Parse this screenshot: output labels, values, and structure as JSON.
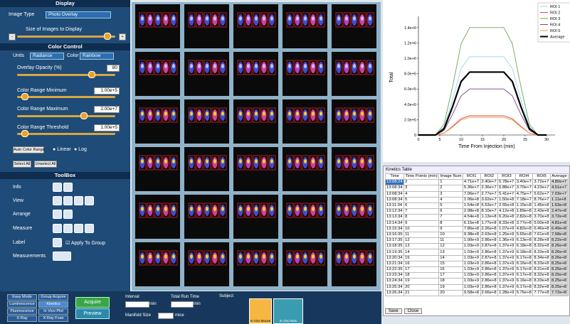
{
  "display": {
    "title": "Display",
    "image_type_label": "Image Type",
    "image_type": "Photo Overlay",
    "size_label": "Size of Images to Display"
  },
  "color_control": {
    "title": "Color Control",
    "units_label": "Units",
    "units": "Radiance",
    "color_label": "Color",
    "color": "Rainbow",
    "opacity_label": "Overlay Opacity (%)",
    "opacity": 80,
    "min_label": "Color Range Minimum",
    "min": "1.00e+5",
    "max_label": "Color Range Maximum",
    "max": "2.00e+7",
    "threshold_label": "Color Range Threshold",
    "threshold": "1.00e+5",
    "auto": "Auto Color Range",
    "linear": "Linear",
    "log": "Log",
    "select_all": "Select All",
    "unselect_all": "Unselect All"
  },
  "toolbox": {
    "title": "ToolBox",
    "info": "Info",
    "view": "View",
    "arrange": "Arrange",
    "measure": "Measure",
    "label": "Label",
    "apply": "Apply To Group",
    "measurements": "Measurements"
  },
  "bottom": {
    "modes": [
      "Easy Mode",
      "Group Acquire",
      "Luminescence",
      "Kinetics",
      "Fluorescence",
      "In Vivo Plot",
      "X-Ray",
      "X-Ray Fuse"
    ],
    "acquire": "Acquire",
    "preview": "Preview",
    "interval": "Interval",
    "interval_unit": "min",
    "total": "Total Run Time",
    "total_unit": "min",
    "manifold": "Manifold Size",
    "manifold_unit": "mice",
    "subject": "Subject",
    "mouse": "In Vivo Mouse",
    "rats": "In Vivo Rats"
  },
  "chart_data": {
    "type": "line",
    "y_label": "Total",
    "x_label": "Time From Injection (min)",
    "x": [
      0,
      4,
      6,
      8,
      10,
      12,
      20,
      22,
      24,
      26,
      28,
      30
    ],
    "xlim": [
      0,
      32
    ],
    "xticks": [
      0,
      5,
      10,
      15,
      20,
      25,
      30
    ],
    "ylim": [
      0,
      1500000
    ],
    "yticks": [
      0,
      {
        "value": 200000,
        "label": "2.0e+5"
      },
      {
        "value": 400000,
        "label": "4.0e+5"
      },
      {
        "value": 600000,
        "label": "6.0e+5"
      },
      {
        "value": 800000,
        "label": "8.0e+5"
      },
      {
        "value": 1000000,
        "label": "1.0e+6"
      },
      {
        "value": 1200000,
        "label": "1.2e+6"
      },
      {
        "value": 1400000,
        "label": "1.4e+6"
      }
    ],
    "legend": "upper right",
    "series": [
      {
        "name": "ROI 1",
        "color": "#9ad6f0",
        "values": [
          0,
          0,
          102000,
          459000,
          867000,
          1020000,
          1020000,
          867000,
          459000,
          102000,
          0,
          0
        ]
      },
      {
        "name": "ROI 2",
        "color": "#e04040",
        "values": [
          0,
          0,
          25000,
          112500,
          212500,
          250000,
          250000,
          212500,
          112500,
          25000,
          0,
          0
        ]
      },
      {
        "name": "ROI 3",
        "color": "#6aa84f",
        "values": [
          0,
          0,
          140000,
          630000,
          1190000,
          1400000,
          1400000,
          1190000,
          630000,
          140000,
          0,
          0
        ]
      },
      {
        "name": "ROI 4",
        "color": "#7b3f8c",
        "values": [
          0,
          0,
          60000,
          270000,
          510000,
          600000,
          600000,
          510000,
          270000,
          60000,
          0,
          0
        ]
      },
      {
        "name": "ROI 5",
        "color": "#e8a040",
        "values": [
          0,
          0,
          23000,
          103500,
          195500,
          230000,
          230000,
          195500,
          103500,
          23000,
          0,
          0
        ]
      },
      {
        "name": "Average",
        "color": "#000000",
        "values": [
          0,
          0,
          82000,
          369000,
          697000,
          820000,
          820000,
          697000,
          369000,
          82000,
          0,
          0
        ]
      }
    ]
  },
  "kinetics_table": {
    "title": "Kinetics Table",
    "columns": [
      "Time",
      "Time Points (min)",
      "Image Num",
      "ROI1",
      "ROI2",
      "ROI3",
      "ROI4",
      "ROI5",
      "Average"
    ],
    "rows": [
      [
        "13:08:24",
        "2",
        "1",
        "4.71e+7",
        "2.40e+7",
        "5.78e+7",
        "3.40e+7",
        "3.72e+7",
        "4.80e+7"
      ],
      [
        "13:08:34",
        "3",
        "2",
        "5.36e+7",
        "2.36e+7",
        "6.88e+7",
        "3.70e+7",
        "4.23e+7",
        "4.51e+7"
      ],
      [
        "13:08:34",
        "4",
        "3",
        "7.06e+7",
        "2.77e+7",
        "5.41e+7",
        "4.75e+7",
        "5.62e+7",
        "7.03e+7"
      ],
      [
        "13:08:34",
        "5",
        "4",
        "1.06e+8",
        "3.62e+7",
        "1.50e+8",
        "7.18e+7",
        "8.76e+7",
        "1.11e+8"
      ],
      [
        "13:11:34",
        "6",
        "5",
        "1.54e+8",
        "5.53e+7",
        "2.55e+8",
        "1.15e+8",
        "1.45e+8",
        "1.63e+8"
      ],
      [
        "13:12:34",
        "7",
        "6",
        "2.98e+8",
        "8.10e+7",
        "4.12e+8",
        "1.89e+8",
        "2.43e+8",
        "2.47e+8"
      ],
      [
        "13:13:34",
        "8",
        "7",
        "4.54e+8",
        "1.13e+8",
        "6.20e+8",
        "2.82e+8",
        "3.70e+8",
        "3.72e+8"
      ],
      [
        "13:14:34",
        "9",
        "8",
        "6.15e+8",
        "1.77e+8",
        "8.33e+8",
        "3.77e+8",
        "5.00e+8",
        "4.81e+8"
      ],
      [
        "13:15:34",
        "10",
        "9",
        "7.86e+8",
        "2.26e+8",
        "1.07e+9",
        "4.82e+8",
        "6.46e+8",
        "6.49e+8"
      ],
      [
        "13:16:35",
        "11",
        "10",
        "9.38e+8",
        "2.63e+8",
        "1.25e+9",
        "5.65e+8",
        "7.61e+8",
        "7.58e+8"
      ],
      [
        "13:17:35",
        "12",
        "11",
        "1.00e+9",
        "2.86e+8",
        "1.36e+9",
        "6.13e+8",
        "8.28e+8",
        "8.22e+8"
      ],
      [
        "13:18:35",
        "13",
        "12",
        "1.03e+9",
        "2.87e+8",
        "1.37e+9",
        "6.18e+8",
        "8.32e+8",
        "8.26e+8"
      ],
      [
        "13:19:35",
        "14",
        "13",
        "1.03e+9",
        "2.86e+8",
        "1.37e+9",
        "6.18e+8",
        "8.33e+8",
        "8.26e+8"
      ],
      [
        "13:20:34",
        "15",
        "14",
        "1.03e+9",
        "2.87e+8",
        "1.37e+9",
        "6.17e+8",
        "8.34e+8",
        "8.26e+8"
      ],
      [
        "13:21:34",
        "16",
        "15",
        "1.03e+9",
        "2.86e+8",
        "1.37e+9",
        "6.16e+8",
        "8.33e+8",
        "8.25e+8"
      ],
      [
        "13:22:35",
        "17",
        "16",
        "1.03e+9",
        "2.86e+8",
        "1.37e+9",
        "6.17e+8",
        "8.31e+8",
        "8.25e+8"
      ],
      [
        "13:23:34",
        "18",
        "17",
        "1.03e+9",
        "2.86e+8",
        "1.37e+9",
        "6.17e+8",
        "8.32e+8",
        "8.25e+8"
      ],
      [
        "13:24:34",
        "19",
        "18",
        "1.03e+9",
        "2.86e+8",
        "1.37e+9",
        "6.16e+8",
        "8.33e+8",
        "8.25e+8"
      ],
      [
        "13:25:34",
        "20",
        "19",
        "1.03e+9",
        "2.86e+8",
        "1.37e+9",
        "6.17e+8",
        "8.32e+8",
        "8.25e+8"
      ],
      [
        "13:26:34",
        "21",
        "20",
        "9.58e+8",
        "2.66e+8",
        "1.28e+9",
        "5.76e+8",
        "7.77e+8",
        "7.72e+8"
      ]
    ],
    "buttons": [
      "Save",
      "Close"
    ]
  }
}
